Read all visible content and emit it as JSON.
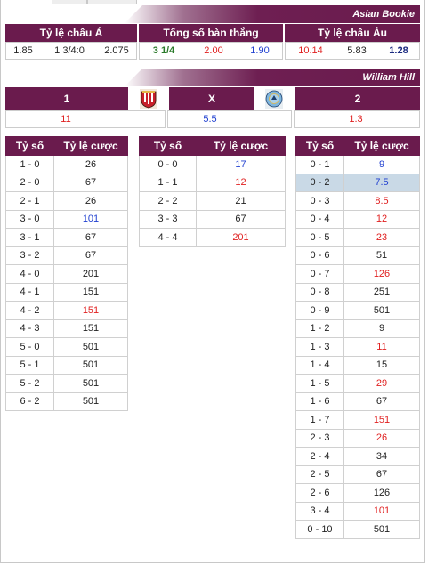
{
  "asian": {
    "bookie": "Asian Bookie",
    "headers": [
      "Tỷ lệ châu Á",
      "Tổng số bàn thắng",
      "Tỷ lệ châu Âu"
    ],
    "asia": [
      "1.85",
      "1 3/4:0",
      "2.075"
    ],
    "total": [
      "3 1/4",
      "2.00",
      "1.90"
    ],
    "europe": [
      "10.14",
      "5.83",
      "1.28"
    ]
  },
  "wh": {
    "bookie": "William Hill",
    "headers": [
      "1",
      "X",
      "2"
    ],
    "values": [
      "11",
      "5.5",
      "1.3"
    ],
    "home_logo": "home-team-crest-icon",
    "away_logo": "away-team-crest-icon"
  },
  "score_cols": {
    "col_score": "Tỷ số",
    "col_odds": "Tỷ lệ cược"
  },
  "home_scores": [
    {
      "s": "1 - 0",
      "o": "26",
      "c": ""
    },
    {
      "s": "2 - 0",
      "o": "67",
      "c": ""
    },
    {
      "s": "2 - 1",
      "o": "26",
      "c": ""
    },
    {
      "s": "3 - 0",
      "o": "101",
      "c": "blue"
    },
    {
      "s": "3 - 1",
      "o": "67",
      "c": ""
    },
    {
      "s": "3 - 2",
      "o": "67",
      "c": ""
    },
    {
      "s": "4 - 0",
      "o": "201",
      "c": ""
    },
    {
      "s": "4 - 1",
      "o": "151",
      "c": ""
    },
    {
      "s": "4 - 2",
      "o": "151",
      "c": "red"
    },
    {
      "s": "4 - 3",
      "o": "151",
      "c": ""
    },
    {
      "s": "5 - 0",
      "o": "501",
      "c": ""
    },
    {
      "s": "5 - 1",
      "o": "501",
      "c": ""
    },
    {
      "s": "5 - 2",
      "o": "501",
      "c": ""
    },
    {
      "s": "6 - 2",
      "o": "501",
      "c": ""
    }
  ],
  "draw_scores": [
    {
      "s": "0 - 0",
      "o": "17",
      "c": "blue"
    },
    {
      "s": "1 - 1",
      "o": "12",
      "c": "red"
    },
    {
      "s": "2 - 2",
      "o": "21",
      "c": ""
    },
    {
      "s": "3 - 3",
      "o": "67",
      "c": ""
    },
    {
      "s": "4 - 4",
      "o": "201",
      "c": "red"
    }
  ],
  "away_scores": [
    {
      "s": "0 - 1",
      "o": "9",
      "c": "blue"
    },
    {
      "s": "0 - 2",
      "o": "7.5",
      "c": "blue",
      "hl": true
    },
    {
      "s": "0 - 3",
      "o": "8.5",
      "c": "red"
    },
    {
      "s": "0 - 4",
      "o": "12",
      "c": "red"
    },
    {
      "s": "0 - 5",
      "o": "23",
      "c": "red"
    },
    {
      "s": "0 - 6",
      "o": "51",
      "c": ""
    },
    {
      "s": "0 - 7",
      "o": "126",
      "c": "red"
    },
    {
      "s": "0 - 8",
      "o": "251",
      "c": ""
    },
    {
      "s": "0 - 9",
      "o": "501",
      "c": ""
    },
    {
      "s": "1 - 2",
      "o": "9",
      "c": ""
    },
    {
      "s": "1 - 3",
      "o": "11",
      "c": "red"
    },
    {
      "s": "1 - 4",
      "o": "15",
      "c": ""
    },
    {
      "s": "1 - 5",
      "o": "29",
      "c": "red"
    },
    {
      "s": "1 - 6",
      "o": "67",
      "c": ""
    },
    {
      "s": "1 - 7",
      "o": "151",
      "c": "red"
    },
    {
      "s": "2 - 3",
      "o": "26",
      "c": "red"
    },
    {
      "s": "2 - 4",
      "o": "34",
      "c": ""
    },
    {
      "s": "2 - 5",
      "o": "67",
      "c": ""
    },
    {
      "s": "2 - 6",
      "o": "126",
      "c": ""
    },
    {
      "s": "3 - 4",
      "o": "101",
      "c": "red"
    },
    {
      "s": "0 - 10",
      "o": "501",
      "c": ""
    }
  ]
}
